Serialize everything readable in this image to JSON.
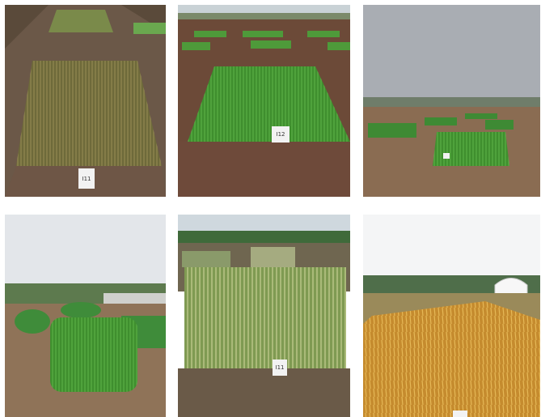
{
  "signs": [
    "I11",
    "I12",
    "I11"
  ]
}
